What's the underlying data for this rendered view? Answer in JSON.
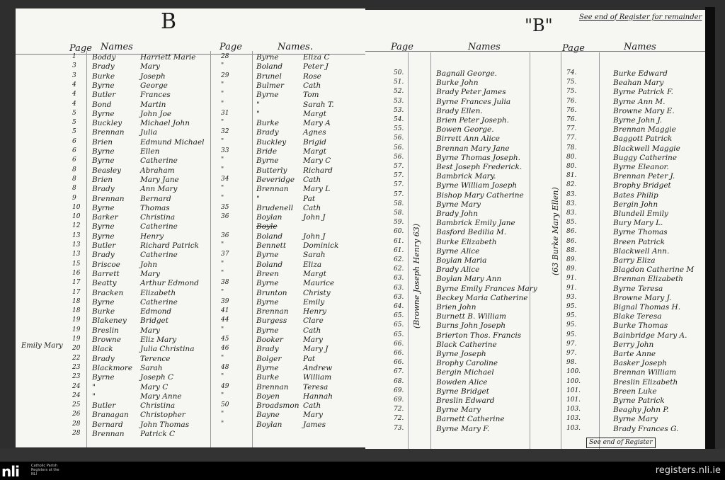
{
  "register": {
    "left_page": {
      "letter": "B",
      "headers": {
        "page": "Page",
        "names": "Names",
        "page2": "Page",
        "names2": "Names."
      },
      "margin_note": "Emily Mary",
      "rows": [
        [
          "1",
          "Boddy",
          "Harriett Marie",
          "28",
          "Byrne",
          "Eliza C"
        ],
        [
          "3",
          "Brady",
          "Mary",
          "\"",
          "Boland",
          "Peter J"
        ],
        [
          "3",
          "Burke",
          "Joseph",
          "29",
          "Brunel",
          "Rose"
        ],
        [
          "4",
          "Byrne",
          "George",
          "\"",
          "Bulmer",
          "Cath"
        ],
        [
          "4",
          "Butler",
          "Frances",
          "\"",
          "Byrne",
          "Tom"
        ],
        [
          "4",
          "Bond",
          "Martin",
          "\"",
          "\"",
          "Sarah T."
        ],
        [
          "5",
          "Byrne",
          "John Joe",
          "31",
          "\"",
          "Margt"
        ],
        [
          "5",
          "Buckley",
          "Michael John",
          "\"",
          "Burke",
          "Mary A"
        ],
        [
          "5",
          "Brennan",
          "Julia",
          "32",
          "Brady",
          "Agnes"
        ],
        [
          "6",
          "Brien",
          "Edmund Michael",
          "\"",
          "Buckley",
          "Brigid"
        ],
        [
          "6",
          "Byrne",
          "Ellen",
          "33",
          "Bride",
          "Margt"
        ],
        [
          "6",
          "Byrne",
          "Catherine",
          "\"",
          "Byrne",
          "Mary C"
        ],
        [
          "8",
          "Beasley",
          "Abraham",
          "\"",
          "Butterly",
          "Richard"
        ],
        [
          "8",
          "Brien",
          "Mary Jane",
          "34",
          "Beveridge",
          "Cath"
        ],
        [
          "8",
          "Brady",
          "Ann Mary",
          "\"",
          "Brennan",
          "Mary L"
        ],
        [
          "9",
          "Brennan",
          "Bernard",
          "\"",
          "\"",
          "Pat"
        ],
        [
          "10",
          "Byrne",
          "Thomas",
          "35",
          "Brudenell",
          "Cath"
        ],
        [
          "10",
          "Barker",
          "Christina",
          "36",
          "Boylan",
          "John J"
        ],
        [
          "12",
          "Byrne",
          "Catherine",
          "",
          "Boyle",
          ""
        ],
        [
          "13",
          "Byrne",
          "Henry",
          "36",
          "Boland",
          "John J"
        ],
        [
          "13",
          "Butler",
          "Richard Patrick",
          "\"",
          "Bennett",
          "Dominick"
        ],
        [
          "13",
          "Brady",
          "Catherine",
          "37",
          "Byrne",
          "Sarah"
        ],
        [
          "15",
          "Briscoe",
          "John",
          "\"",
          "Boland",
          "Eliza"
        ],
        [
          "16",
          "Barrett",
          "Mary",
          "\"",
          "Breen",
          "Margt"
        ],
        [
          "17",
          "Beatty",
          "Arthur Edmond",
          "38",
          "Byrne",
          "Maurice"
        ],
        [
          "17",
          "Bracken",
          "Elizabeth",
          "\"",
          "Brunton",
          "Christy"
        ],
        [
          "18",
          "Byrne",
          "Catherine",
          "39",
          "Byrne",
          "Emily"
        ],
        [
          "18",
          "Burke",
          "Edmond",
          "41",
          "Brennan",
          "Henry"
        ],
        [
          "19",
          "Blakeney",
          "Bridget",
          "44",
          "Burgess",
          "Clare"
        ],
        [
          "19",
          "Breslin",
          "Mary",
          "\"",
          "Byrne",
          "Cath"
        ],
        [
          "19",
          "Browne",
          "Eliz Mary",
          "45",
          "Booker",
          "Mary"
        ],
        [
          "20",
          "Black",
          "Julia Christina",
          "46",
          "Brady",
          "Mary J"
        ],
        [
          "22",
          "Brady",
          "Terence",
          "\"",
          "Bolger",
          "Pat"
        ],
        [
          "23",
          "Blackmore",
          "Sarah",
          "48",
          "Byrne",
          "Andrew"
        ],
        [
          "23",
          "Byrne",
          "Joseph C",
          "\"",
          "Burke",
          "William"
        ],
        [
          "24",
          "\"",
          "Mary C",
          "49",
          "Brennan",
          "Teresa"
        ],
        [
          "24",
          "\"",
          "Mary Anne",
          "\"",
          "Boyen",
          "Hannah"
        ],
        [
          "25",
          "Butler",
          "Christina",
          "50",
          "Broadsmon",
          "Cath"
        ],
        [
          "26",
          "Branagan",
          "Christopher",
          "\"",
          "Bayne",
          "Mary"
        ],
        [
          "28",
          "Bernard",
          "John Thomas",
          "\"",
          "Boylan",
          "James"
        ],
        [
          "28",
          "Brennan",
          "Patrick C",
          "",
          "",
          ""
        ]
      ]
    },
    "right_page": {
      "letter": "\"B\"",
      "top_note": "See end of Register for remainder",
      "bottom_note": "See end of Register",
      "headers": {
        "page": "Page",
        "names": "Names",
        "page2": "Page",
        "names2": "Names"
      },
      "vertical_note_1": "(Browne Joseph Henry 63)",
      "vertical_note_2": "(63 Burke Mary Ellen)",
      "rows": [
        [
          "50.",
          "Bagnall George.",
          "74.",
          "Burke Edward"
        ],
        [
          "51.",
          "Burke John",
          "75.",
          "Beahan Mary"
        ],
        [
          "52.",
          "Brady Peter James",
          "75.",
          "Byrne Patrick F."
        ],
        [
          "53.",
          "Byrne Frances Julia",
          "76.",
          "Byrne Ann M."
        ],
        [
          "53.",
          "Brady Ellen.",
          "76.",
          "Browne Mary E."
        ],
        [
          "54.",
          "Brien Peter Joseph.",
          "76.",
          "Byrne John J."
        ],
        [
          "55.",
          "Bowen George.",
          "77.",
          "Brennan Maggie"
        ],
        [
          "56.",
          "Birrett Ann Alice",
          "77.",
          "Baggott Patrick"
        ],
        [
          "56.",
          "Brennan Mary Jane",
          "78.",
          "Blackwell Maggie"
        ],
        [
          "56.",
          "Byrne Thomas Joseph.",
          "80.",
          "Buggy Catherine"
        ],
        [
          "57.",
          "Best Joseph Frederick.",
          "80.",
          "Byrne Eleanor."
        ],
        [
          "57.",
          "Bambrick Mary.",
          "81.",
          "Brennan Peter J."
        ],
        [
          "57.",
          "Byrne William Joseph",
          "82.",
          "Brophy Bridget"
        ],
        [
          "57.",
          "Bishop Mary Catherine",
          "83.",
          "Bates Philip"
        ],
        [
          "58.",
          "Byrne Mary",
          "83.",
          "Bergin John"
        ],
        [
          "58.",
          "Brady John",
          "83.",
          "Blundell Emily"
        ],
        [
          "59.",
          "Bambrick Emily Jane",
          "85.",
          "Bury Mary L."
        ],
        [
          "60.",
          "Basford Bedilia M.",
          "86.",
          "Byrne Thomas"
        ],
        [
          "61.",
          "Burke Elizabeth",
          "86.",
          "Breen Patrick"
        ],
        [
          "61.",
          "Byrne Alice",
          "88.",
          "Blackwell Ann."
        ],
        [
          "62.",
          "Boylan Maria",
          "89.",
          "Barry Eliza"
        ],
        [
          "62.",
          "Brady Alice",
          "89.",
          "Blagdon Catherine M"
        ],
        [
          "63.",
          "Boylan Mary Ann",
          "91.",
          "Brennan Elizabeth"
        ],
        [
          "63.",
          "Byrne Emily Frances Mary",
          "91.",
          "Byrne Teresa"
        ],
        [
          "63.",
          "Beckey Maria Catherine",
          "93.",
          "Browne Mary J."
        ],
        [
          "64.",
          "Brien John",
          "95.",
          "Bignal Thomas H."
        ],
        [
          "65.",
          "Burnett B. William",
          "95.",
          "Blake Teresa"
        ],
        [
          "65.",
          "Burns John Joseph",
          "95.",
          "Burke Thomas"
        ],
        [
          "65.",
          "Brierton Thos. Francis",
          "95.",
          "Bainbridge Mary A."
        ],
        [
          "66.",
          "Black Catherine",
          "97.",
          "Berry John"
        ],
        [
          "66.",
          "Byrne Joseph",
          "97.",
          "Barte Anne"
        ],
        [
          "66.",
          "Brophy Caroline",
          "98.",
          "Basker Joseph"
        ],
        [
          "67.",
          "Bergin Michael",
          "100.",
          "Brennan William"
        ],
        [
          "68.",
          "Bowden Alice",
          "100.",
          "Breslin Elizabeth"
        ],
        [
          "69.",
          "Byrne Bridget",
          "101.",
          "Breen Luke"
        ],
        [
          "69.",
          "Breslin Edward",
          "101.",
          "Byrne Patrick"
        ],
        [
          "72.",
          "Byrne Mary",
          "103.",
          "Beaghy John P."
        ],
        [
          "72.",
          "Barnett Catherine",
          "103.",
          "Byrne Mary"
        ],
        [
          "73.",
          "Byrne Mary F.",
          "103.",
          "Brady Frances G."
        ]
      ]
    }
  },
  "footer": {
    "logo": "nli",
    "logo_text": "Catholic Parish Registers at the NLI",
    "site": "registers.nli.ie"
  }
}
